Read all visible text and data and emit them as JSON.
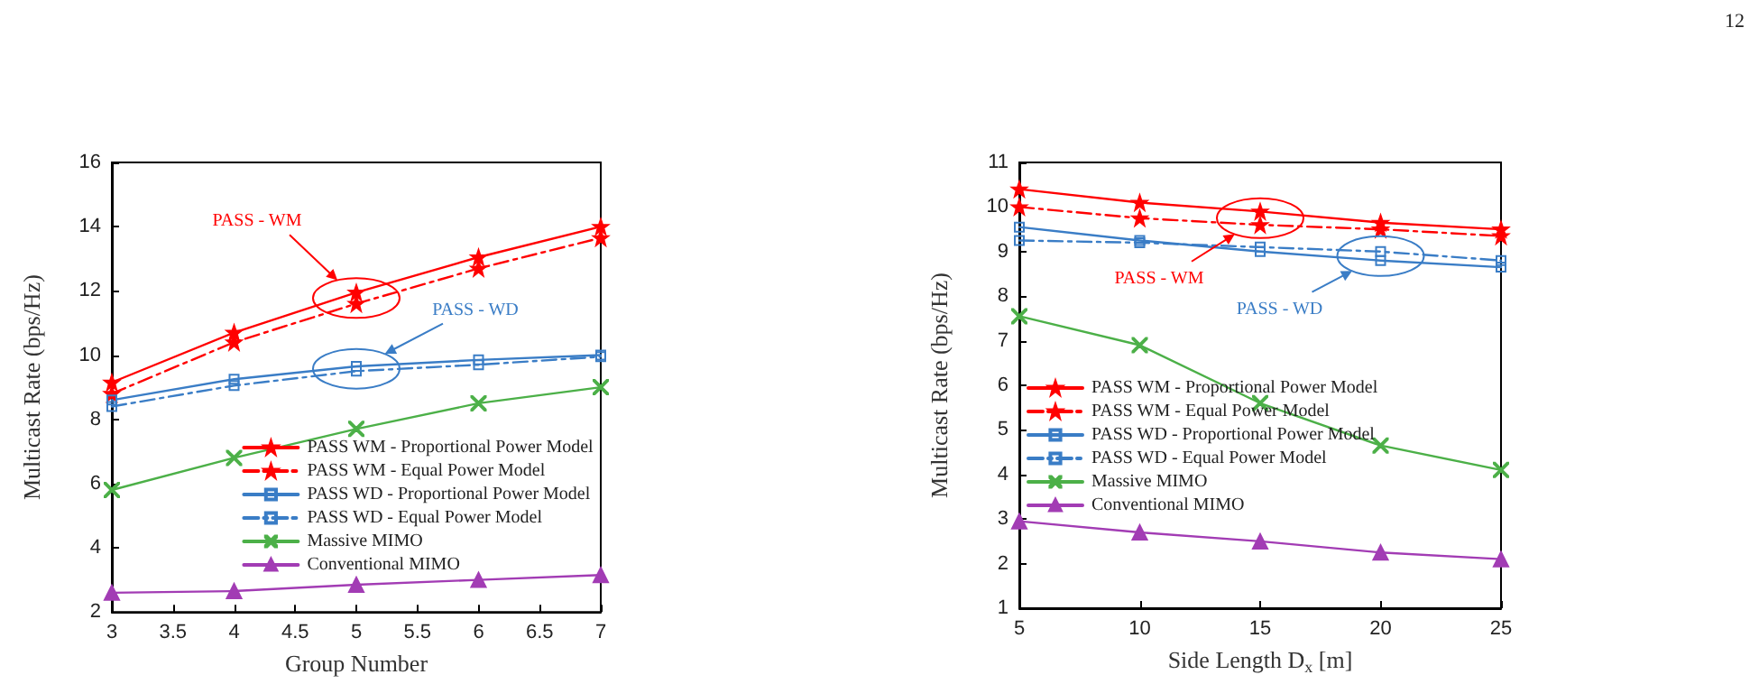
{
  "chart_data": [
    {
      "type": "line",
      "xlabel": "Group Number",
      "ylabel": "Multicast Rate (bps/Hz)",
      "x": [
        3,
        4,
        5,
        6,
        7
      ],
      "xlim": [
        3,
        7
      ],
      "xticks": [
        3,
        3.5,
        4,
        4.5,
        5,
        5.5,
        6,
        6.5,
        7
      ],
      "ylim": [
        2,
        16
      ],
      "yticks": [
        2,
        4,
        6,
        8,
        10,
        12,
        14,
        16
      ],
      "grid": false,
      "legend": "bottom right",
      "series": [
        {
          "name": "PASS WM - Proportional Power Model",
          "color": "#ff0000",
          "marker": "star",
          "line_style": "solid",
          "values": [
            9.15,
            10.7,
            11.95,
            13.05,
            14.0
          ]
        },
        {
          "name": "PASS WM - Equal Power Model",
          "color": "#ff0000",
          "marker": "star",
          "line_style": "dashdot",
          "values": [
            8.8,
            10.4,
            11.6,
            12.7,
            13.65
          ]
        },
        {
          "name": "PASS WD - Proportional Power Model",
          "color": "#3a7dc6",
          "marker": "square",
          "line_style": "solid",
          "values": [
            8.6,
            9.25,
            9.65,
            9.85,
            10.0
          ]
        },
        {
          "name": "PASS WD - Equal Power Model",
          "color": "#3a7dc6",
          "marker": "square",
          "line_style": "dashdot",
          "values": [
            8.4,
            9.05,
            9.5,
            9.7,
            9.95
          ]
        },
        {
          "name": "Massive MIMO",
          "color": "#4cb048",
          "marker": "cross",
          "line_style": "solid",
          "values": [
            5.8,
            6.8,
            7.7,
            8.5,
            9.0
          ]
        },
        {
          "name": "Conventional MIMO",
          "color": "#a23cb4",
          "marker": "triangle",
          "line_style": "solid",
          "values": [
            2.6,
            2.65,
            2.85,
            3.0,
            3.15
          ]
        }
      ],
      "annotations": [
        "PASS - WM",
        "PASS - WD"
      ]
    },
    {
      "type": "line",
      "xlabel": "Side Length D$_{x}$ [m]",
      "ylabel": "Multicast Rate (bps/Hz)",
      "x": [
        5,
        10,
        15,
        20,
        25
      ],
      "xlim": [
        5,
        25
      ],
      "xticks": [
        5,
        10,
        15,
        20,
        25
      ],
      "ylim": [
        1,
        11
      ],
      "yticks": [
        1,
        2,
        3,
        4,
        5,
        6,
        7,
        8,
        9,
        10,
        11
      ],
      "grid": false,
      "legend": "left",
      "series": [
        {
          "name": "PASS WM - Proportional Power Model",
          "color": "#ff0000",
          "marker": "star",
          "line_style": "solid",
          "values": [
            10.4,
            10.1,
            9.9,
            9.65,
            9.5
          ]
        },
        {
          "name": "PASS WM - Equal Power Model",
          "color": "#ff0000",
          "marker": "star",
          "line_style": "dashdot",
          "values": [
            10.0,
            9.75,
            9.6,
            9.5,
            9.35
          ]
        },
        {
          "name": "PASS WD - Proportional Power Model",
          "color": "#3a7dc6",
          "marker": "square",
          "line_style": "solid",
          "values": [
            9.55,
            9.25,
            9.0,
            8.8,
            8.65
          ]
        },
        {
          "name": "PASS WD - Equal Power Model",
          "color": "#3a7dc6",
          "marker": "square",
          "line_style": "dashdot",
          "values": [
            9.25,
            9.2,
            9.1,
            9.0,
            8.8
          ]
        },
        {
          "name": "Massive MIMO",
          "color": "#4cb048",
          "marker": "cross",
          "line_style": "solid",
          "values": [
            7.55,
            6.9,
            5.6,
            4.65,
            4.1
          ]
        },
        {
          "name": "Conventional MIMO",
          "color": "#a23cb4",
          "marker": "triangle",
          "line_style": "solid",
          "values": [
            2.95,
            2.7,
            2.5,
            2.25,
            2.1
          ]
        }
      ],
      "annotations": [
        "PASS - WM",
        "PASS - WD",
        "12"
      ]
    }
  ]
}
